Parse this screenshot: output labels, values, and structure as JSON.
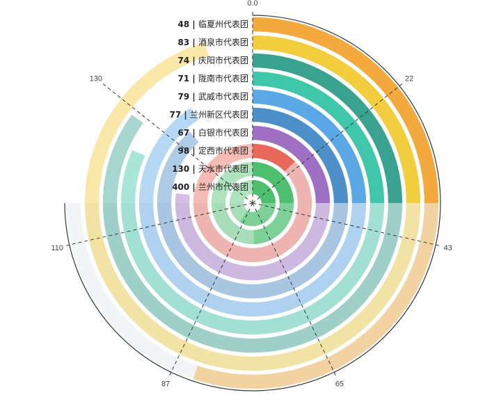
{
  "chart_data": {
    "type": "radial-bar",
    "title": "",
    "angle_axis": {
      "max": 87,
      "tick_labels": [
        "0.0",
        "22",
        "43",
        "65",
        "87",
        "110",
        "130"
      ]
    },
    "categories": [
      "兰州市代表团",
      "天水市代表团",
      "定西市代表团",
      "白银市代表团",
      "兰州新区代表团",
      "武威市代表团",
      "陇南市代表团",
      "庆阳市代表团",
      "酒泉市代表团",
      "临夏州代表团"
    ],
    "values": [
      400,
      130,
      98,
      67,
      77,
      79,
      71,
      74,
      83,
      48
    ],
    "colors": [
      "#4cc06e",
      "#4cc06e",
      "#e8685c",
      "#9f6fc4",
      "#4d8fc9",
      "#5aa8e6",
      "#3fc7a9",
      "#3aa390",
      "#f2cd3d",
      "#f4a93c"
    ],
    "label_separator": "|"
  }
}
